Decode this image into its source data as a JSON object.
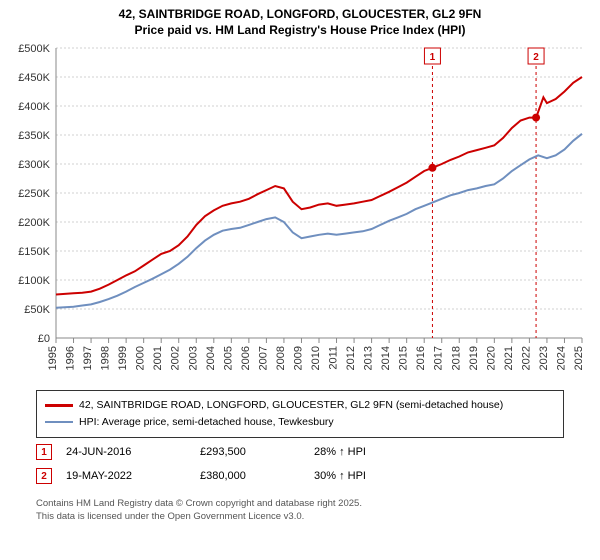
{
  "title_line1": "42, SAINTBRIDGE ROAD, LONGFORD, GLOUCESTER, GL2 9FN",
  "title_line2": "Price paid vs. HM Land Registry's House Price Index (HPI)",
  "chart": {
    "type": "line",
    "background_color": "#ffffff",
    "grid_color": "#d0d0d0",
    "axis_color": "#888888",
    "y": {
      "min": 0,
      "max": 500000,
      "step": 50000,
      "ticks": [
        0,
        50000,
        100000,
        150000,
        200000,
        250000,
        300000,
        350000,
        400000,
        450000,
        500000
      ],
      "tick_labels": [
        "£0",
        "£50K",
        "£100K",
        "£150K",
        "£200K",
        "£250K",
        "£300K",
        "£350K",
        "£400K",
        "£450K",
        "£500K"
      ]
    },
    "x": {
      "min": 1995,
      "max": 2025,
      "ticks": [
        1995,
        1996,
        1997,
        1998,
        1999,
        2000,
        2001,
        2002,
        2003,
        2004,
        2005,
        2006,
        2007,
        2008,
        2009,
        2010,
        2011,
        2012,
        2013,
        2014,
        2015,
        2016,
        2017,
        2018,
        2019,
        2020,
        2021,
        2022,
        2023,
        2024,
        2025
      ]
    },
    "series": [
      {
        "name": "property",
        "color": "#cc0000",
        "line_width": 2,
        "legend": "42, SAINTBRIDGE ROAD, LONGFORD, GLOUCESTER, GL2 9FN (semi-detached house)",
        "points": [
          [
            1995,
            75000
          ],
          [
            1995.5,
            76000
          ],
          [
            1996,
            77000
          ],
          [
            1996.5,
            78000
          ],
          [
            1997,
            80000
          ],
          [
            1997.5,
            85000
          ],
          [
            1998,
            92000
          ],
          [
            1998.5,
            100000
          ],
          [
            1999,
            108000
          ],
          [
            1999.5,
            115000
          ],
          [
            2000,
            125000
          ],
          [
            2000.5,
            135000
          ],
          [
            2001,
            145000
          ],
          [
            2001.5,
            150000
          ],
          [
            2002,
            160000
          ],
          [
            2002.5,
            175000
          ],
          [
            2003,
            195000
          ],
          [
            2003.5,
            210000
          ],
          [
            2004,
            220000
          ],
          [
            2004.5,
            228000
          ],
          [
            2005,
            232000
          ],
          [
            2005.5,
            235000
          ],
          [
            2006,
            240000
          ],
          [
            2006.5,
            248000
          ],
          [
            2007,
            255000
          ],
          [
            2007.5,
            262000
          ],
          [
            2008,
            258000
          ],
          [
            2008.5,
            235000
          ],
          [
            2009,
            222000
          ],
          [
            2009.5,
            225000
          ],
          [
            2010,
            230000
          ],
          [
            2010.5,
            232000
          ],
          [
            2011,
            228000
          ],
          [
            2011.5,
            230000
          ],
          [
            2012,
            232000
          ],
          [
            2012.5,
            235000
          ],
          [
            2013,
            238000
          ],
          [
            2013.5,
            245000
          ],
          [
            2014,
            252000
          ],
          [
            2014.5,
            260000
          ],
          [
            2015,
            268000
          ],
          [
            2015.5,
            278000
          ],
          [
            2016,
            288000
          ],
          [
            2016.47,
            293500
          ],
          [
            2017,
            300000
          ],
          [
            2017.5,
            307000
          ],
          [
            2018,
            313000
          ],
          [
            2018.5,
            320000
          ],
          [
            2019,
            324000
          ],
          [
            2019.5,
            328000
          ],
          [
            2020,
            332000
          ],
          [
            2020.5,
            345000
          ],
          [
            2021,
            362000
          ],
          [
            2021.5,
            375000
          ],
          [
            2022,
            380000
          ],
          [
            2022.38,
            380000
          ],
          [
            2022.8,
            415000
          ],
          [
            2023,
            405000
          ],
          [
            2023.5,
            412000
          ],
          [
            2024,
            425000
          ],
          [
            2024.5,
            440000
          ],
          [
            2025,
            450000
          ]
        ]
      },
      {
        "name": "hpi",
        "color": "#6f8fbf",
        "line_width": 2,
        "legend": "HPI: Average price, semi-detached house, Tewkesbury",
        "points": [
          [
            1995,
            52000
          ],
          [
            1995.5,
            53000
          ],
          [
            1996,
            54000
          ],
          [
            1996.5,
            56000
          ],
          [
            1997,
            58000
          ],
          [
            1997.5,
            62000
          ],
          [
            1998,
            67000
          ],
          [
            1998.5,
            73000
          ],
          [
            1999,
            80000
          ],
          [
            1999.5,
            88000
          ],
          [
            2000,
            95000
          ],
          [
            2000.5,
            102000
          ],
          [
            2001,
            110000
          ],
          [
            2001.5,
            118000
          ],
          [
            2002,
            128000
          ],
          [
            2002.5,
            140000
          ],
          [
            2003,
            155000
          ],
          [
            2003.5,
            168000
          ],
          [
            2004,
            178000
          ],
          [
            2004.5,
            185000
          ],
          [
            2005,
            188000
          ],
          [
            2005.5,
            190000
          ],
          [
            2006,
            195000
          ],
          [
            2006.5,
            200000
          ],
          [
            2007,
            205000
          ],
          [
            2007.5,
            208000
          ],
          [
            2008,
            200000
          ],
          [
            2008.5,
            182000
          ],
          [
            2009,
            172000
          ],
          [
            2009.5,
            175000
          ],
          [
            2010,
            178000
          ],
          [
            2010.5,
            180000
          ],
          [
            2011,
            178000
          ],
          [
            2011.5,
            180000
          ],
          [
            2012,
            182000
          ],
          [
            2012.5,
            184000
          ],
          [
            2013,
            188000
          ],
          [
            2013.5,
            195000
          ],
          [
            2014,
            202000
          ],
          [
            2014.5,
            208000
          ],
          [
            2015,
            214000
          ],
          [
            2015.5,
            222000
          ],
          [
            2016,
            228000
          ],
          [
            2016.5,
            234000
          ],
          [
            2017,
            240000
          ],
          [
            2017.5,
            246000
          ],
          [
            2018,
            250000
          ],
          [
            2018.5,
            255000
          ],
          [
            2019,
            258000
          ],
          [
            2019.5,
            262000
          ],
          [
            2020,
            265000
          ],
          [
            2020.5,
            275000
          ],
          [
            2021,
            288000
          ],
          [
            2021.5,
            298000
          ],
          [
            2022,
            308000
          ],
          [
            2022.5,
            315000
          ],
          [
            2023,
            310000
          ],
          [
            2023.5,
            315000
          ],
          [
            2024,
            325000
          ],
          [
            2024.5,
            340000
          ],
          [
            2025,
            352000
          ]
        ]
      }
    ],
    "sale_markers": [
      {
        "idx": "1",
        "year": 2016.47,
        "value": 293500
      },
      {
        "idx": "2",
        "year": 2022.38,
        "value": 380000
      }
    ]
  },
  "sales": [
    {
      "idx": "1",
      "date": "24-JUN-2016",
      "price": "£293,500",
      "delta": "28% ↑ HPI"
    },
    {
      "idx": "2",
      "date": "19-MAY-2022",
      "price": "£380,000",
      "delta": "30% ↑ HPI"
    }
  ],
  "footer_line1": "Contains HM Land Registry data © Crown copyright and database right 2025.",
  "footer_line2": "This data is licensed under the Open Government Licence v3.0."
}
